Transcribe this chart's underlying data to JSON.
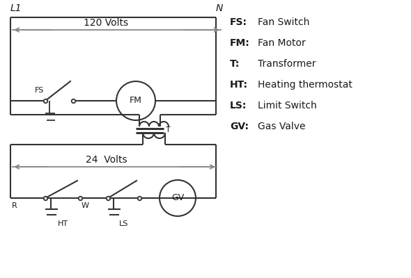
{
  "background_color": "#ffffff",
  "line_color": "#333333",
  "arrow_color": "#888888",
  "text_color": "#1a1a1a",
  "legend": [
    [
      "FS:",
      "Fan Switch"
    ],
    [
      "FM:",
      "Fan Motor"
    ],
    [
      "T:",
      "Transformer"
    ],
    [
      "HT:",
      "Heating thermostat"
    ],
    [
      "LS:",
      "Limit Switch"
    ],
    [
      "GV:",
      "Gas Valve"
    ]
  ],
  "volts_120": "120 Volts",
  "volts_24": "24  Volts",
  "L1": "L1",
  "N": "N"
}
